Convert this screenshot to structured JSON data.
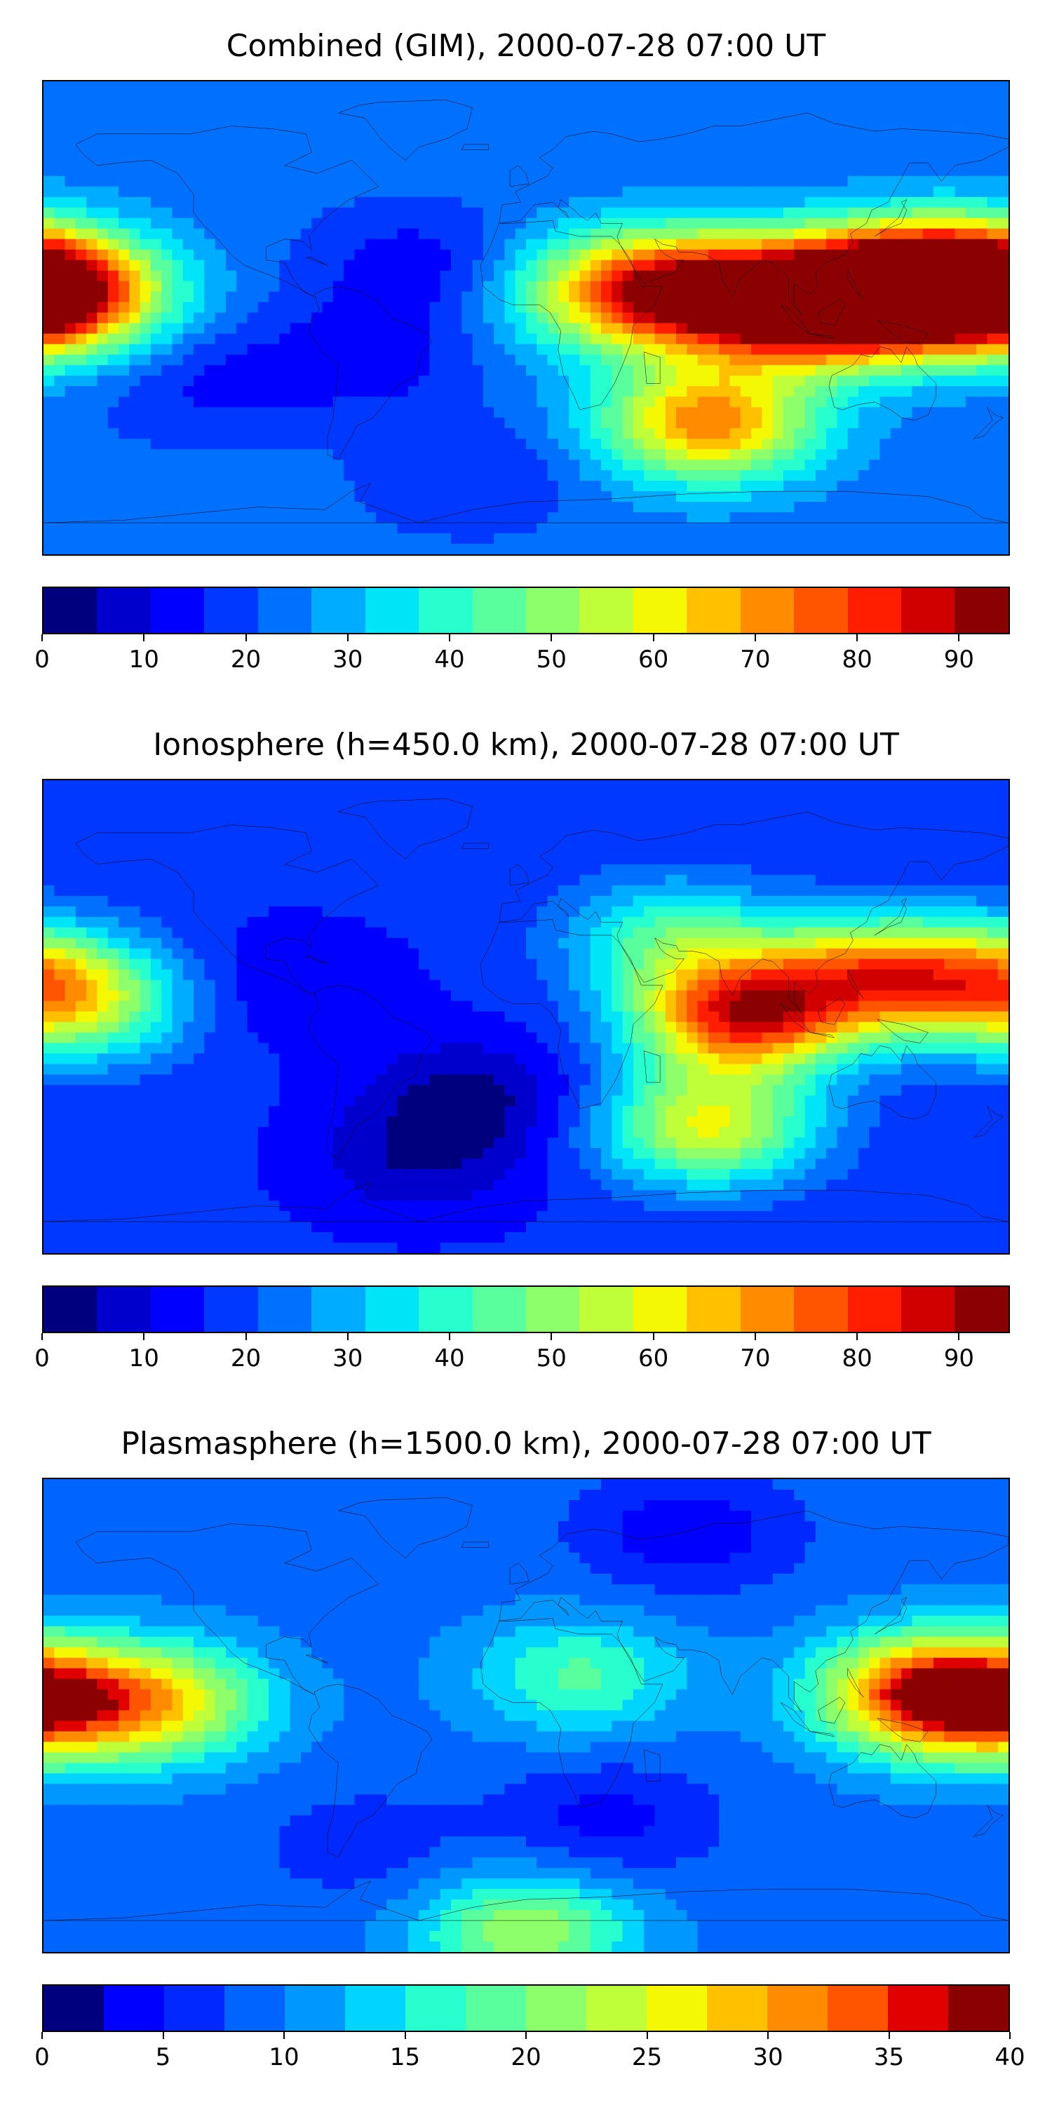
{
  "chart_data": [
    {
      "type": "heatmap",
      "title": "Combined (GIM), 2000-07-28 07:00 UT",
      "colorbar": {
        "min": 0,
        "max": 95,
        "step": 5,
        "ticks": [
          0,
          10,
          20,
          30,
          40,
          50,
          60,
          70,
          80,
          90
        ],
        "colors": [
          "#00007f",
          "#0000cc",
          "#0000ff",
          "#0038ff",
          "#0070ff",
          "#00acff",
          "#00e4f8",
          "#28ffce",
          "#5aff9d",
          "#8cff6a",
          "#beff3a",
          "#f4f802",
          "#ffc000",
          "#ff8c00",
          "#ff5400",
          "#ff1e00",
          "#d00000",
          "#8b0000"
        ]
      },
      "field": {
        "background": 22,
        "blobs": [
          {
            "lon": 105,
            "lat": 5,
            "value": 92
          },
          {
            "lon": 140,
            "lat": 12,
            "value": 84
          },
          {
            "lon": 170,
            "lat": 12,
            "value": 80
          },
          {
            "lon": 60,
            "lat": 10,
            "value": 68
          },
          {
            "lon": 68,
            "lat": -40,
            "value": 68
          },
          {
            "lon": -170,
            "lat": 8,
            "value": 55
          },
          {
            "lon": 30,
            "lat": 10,
            "value": 50
          },
          {
            "lon": -60,
            "lat": -15,
            "value": 12
          },
          {
            "lon": -40,
            "lat": 20,
            "value": 12
          },
          {
            "lon": -20,
            "lat": -60,
            "value": 15
          },
          {
            "lon": -120,
            "lat": -25,
            "value": 14
          }
        ]
      }
    },
    {
      "type": "heatmap",
      "title": "Ionosphere  (h=450.0 km), 2000-07-28 07:00 UT",
      "colorbar": {
        "min": 0,
        "max": 95,
        "step": 5,
        "ticks": [
          0,
          10,
          20,
          30,
          40,
          50,
          60,
          70,
          80,
          90
        ],
        "colors": [
          "#00007f",
          "#0000cc",
          "#0000ff",
          "#0038ff",
          "#0070ff",
          "#00acff",
          "#00e4f8",
          "#28ffce",
          "#5aff9d",
          "#8cff6a",
          "#beff3a",
          "#f4f802",
          "#ffc000",
          "#ff8c00",
          "#ff5400",
          "#ff1e00",
          "#d00000",
          "#8b0000"
        ]
      },
      "field": {
        "background": 16,
        "blobs": [
          {
            "lon": 80,
            "lat": 0,
            "value": 75
          },
          {
            "lon": 125,
            "lat": 15,
            "value": 58
          },
          {
            "lon": 168,
            "lat": 15,
            "value": 50
          },
          {
            "lon": 68,
            "lat": -42,
            "value": 55
          },
          {
            "lon": -165,
            "lat": 5,
            "value": 45
          },
          {
            "lon": 55,
            "lat": 30,
            "value": 40
          },
          {
            "lon": -20,
            "lat": -30,
            "value": 4
          },
          {
            "lon": -40,
            "lat": -55,
            "value": 6
          },
          {
            "lon": -90,
            "lat": 12,
            "value": 10
          }
        ]
      }
    },
    {
      "type": "heatmap",
      "title": "Plasmasphere (h=1500.0 km), 2000-07-28 07:00 UT",
      "colorbar": {
        "min": 0,
        "max": 40,
        "step": 2.5,
        "ticks": [
          0,
          5,
          10,
          15,
          20,
          25,
          30,
          35,
          40
        ],
        "colors": [
          "#00007f",
          "#0000ff",
          "#0028ff",
          "#0064ff",
          "#0098ff",
          "#00d4ff",
          "#28ffce",
          "#5aff9d",
          "#8cff6a",
          "#beff3a",
          "#f4f802",
          "#ffc000",
          "#ff8c00",
          "#ff5400",
          "#e00000",
          "#8b0000"
        ]
      },
      "field": {
        "background": 9,
        "blobs": [
          {
            "lon": 150,
            "lat": 8,
            "value": 36
          },
          {
            "lon": -175,
            "lat": 5,
            "value": 26
          },
          {
            "lon": -135,
            "lat": 5,
            "value": 24
          },
          {
            "lon": 20,
            "lat": 15,
            "value": 18
          },
          {
            "lon": 0,
            "lat": -82,
            "value": 22
          },
          {
            "lon": 60,
            "lat": 70,
            "value": 3
          },
          {
            "lon": 30,
            "lat": -40,
            "value": 4
          },
          {
            "lon": -60,
            "lat": -50,
            "value": 6
          }
        ]
      }
    }
  ]
}
